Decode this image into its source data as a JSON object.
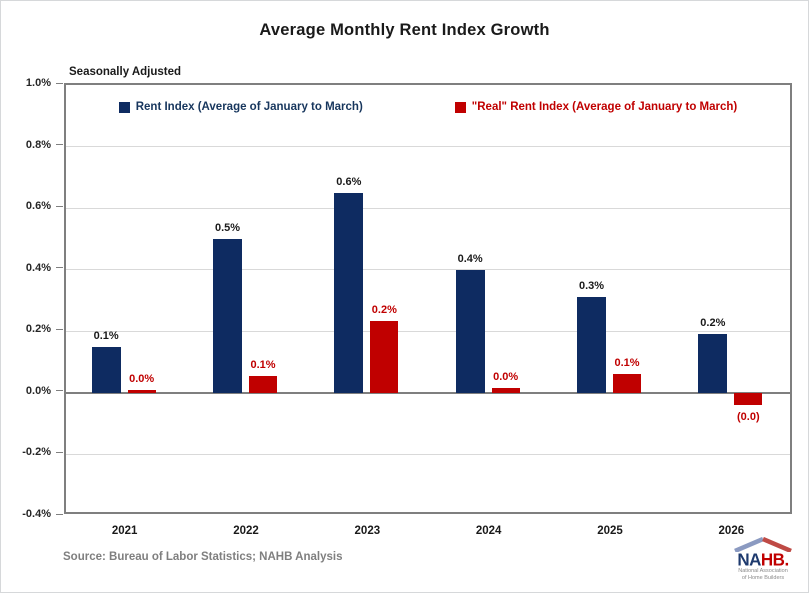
{
  "chart_data": {
    "type": "bar",
    "title": "Average Monthly Rent Index Growth",
    "subtitle": "Seasonally Adjusted",
    "categories": [
      "2021",
      "2022",
      "2023",
      "2024",
      "2025",
      "2026"
    ],
    "series": [
      {
        "name": "Rent Index (Average of January to March)",
        "color": "#0e2b61",
        "label_color": "#1a1a1a",
        "values": [
          0.15,
          0.5,
          0.65,
          0.4,
          0.31,
          0.19
        ],
        "labels": [
          "0.1%",
          "0.5%",
          "0.6%",
          "0.4%",
          "0.3%",
          "0.2%"
        ]
      },
      {
        "name": "\"Real\" Rent Index (Average of January to March)",
        "color": "#c00000",
        "label_color": "#c00000",
        "values": [
          0.01,
          0.055,
          0.235,
          0.015,
          0.06,
          -0.04
        ],
        "labels": [
          "0.0%",
          "0.1%",
          "0.2%",
          "0.0%",
          "0.1%",
          "(0.0)"
        ]
      }
    ],
    "ylim": [
      -0.4,
      1.0
    ],
    "ytick_step": 0.2,
    "ytick_labels": [
      "1.0%",
      "0.8%",
      "0.6%",
      "0.4%",
      "0.2%",
      "0.0%",
      "-0.2%",
      "-0.4%"
    ],
    "grid": true,
    "legend_position": "inside-top",
    "source": "Source: Bureau of Labor Statistics; NAHB Analysis"
  },
  "logo": {
    "name": "NAHB",
    "text_primary": "NA",
    "text_secondary": "HB.",
    "tagline_line1": "National Association",
    "tagline_line2": "of Home Builders",
    "color_primary": "#1e3a6e",
    "color_secondary": "#c00000",
    "roof_left_color": "#8b9ac1",
    "roof_right_color": "#bf4a45"
  },
  "colors": {
    "background": "#ffffff",
    "plot_border": "#7f7f7f",
    "gridline": "#d9d9d9",
    "zero_line": "#7f7f7f",
    "axis_text": "#262626",
    "source_text": "#7f7f7f"
  }
}
